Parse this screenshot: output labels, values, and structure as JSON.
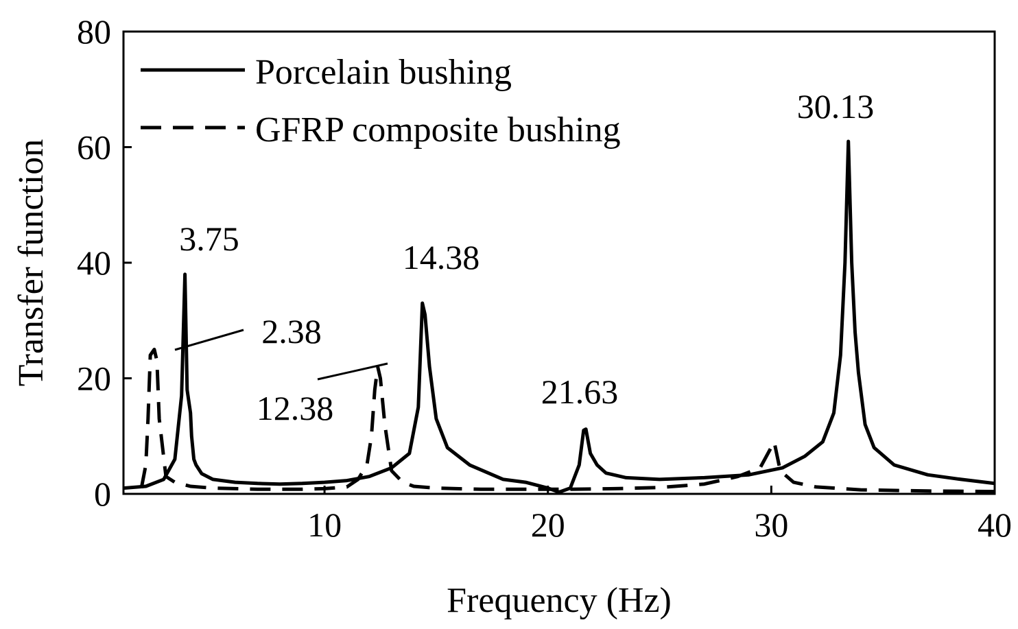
{
  "chart_data": {
    "type": "line",
    "title": "",
    "xlabel": "Frequency (Hz)",
    "ylabel": "Transfer function",
    "xlim": [
      1,
      40
    ],
    "ylim": [
      0,
      80
    ],
    "xticks": [
      10,
      20,
      30,
      40
    ],
    "yticks": [
      0,
      20,
      40,
      60,
      80
    ],
    "grid": false,
    "legend_position": "top-left",
    "series": [
      {
        "name": "Porcelain bushing",
        "style": "solid",
        "color": "#000000",
        "x": [
          1.0,
          2.0,
          2.8,
          3.3,
          3.6,
          3.75,
          3.85,
          4.0,
          4.05,
          4.15,
          4.25,
          4.5,
          5.0,
          6.0,
          7.0,
          8.0,
          9.0,
          10.0,
          11.0,
          12.0,
          13.0,
          13.8,
          14.2,
          14.38,
          14.5,
          14.7,
          15.0,
          15.5,
          16.5,
          18.0,
          19.0,
          20.0,
          20.5,
          21.0,
          21.4,
          21.6,
          21.7,
          21.9,
          22.2,
          22.6,
          23.5,
          25.0,
          27.0,
          29.0,
          30.5,
          31.5,
          32.3,
          32.8,
          33.1,
          33.3,
          33.45,
          33.6,
          33.75,
          33.9,
          34.2,
          34.6,
          35.5,
          37.0,
          38.5,
          40.0
        ],
        "y": [
          1.0,
          1.3,
          2.5,
          6.0,
          17.0,
          38.0,
          18.0,
          14.0,
          10.0,
          6.0,
          5.0,
          3.5,
          2.5,
          2.0,
          1.8,
          1.7,
          1.8,
          2.0,
          2.3,
          3.0,
          4.5,
          7.0,
          15.0,
          33.0,
          31.0,
          22.0,
          13.0,
          8.0,
          5.0,
          2.5,
          2.0,
          1.0,
          0.3,
          1.0,
          5.0,
          11.0,
          11.2,
          7.0,
          5.0,
          3.6,
          2.8,
          2.5,
          2.8,
          3.3,
          4.5,
          6.5,
          9.0,
          14.0,
          24.0,
          40.0,
          61.0,
          40.0,
          28.0,
          21.0,
          12.0,
          8.0,
          5.0,
          3.3,
          2.5,
          1.8
        ]
      },
      {
        "name": "GFRP composite bushing",
        "style": "dashed",
        "color": "#000000",
        "x": [
          1.8,
          2.0,
          2.1,
          2.2,
          2.38,
          2.5,
          2.6,
          2.9,
          3.3,
          4.0,
          5.0,
          6.0,
          7.0,
          8.0,
          9.0,
          10.0,
          11.0,
          11.5,
          11.9,
          12.1,
          12.25,
          12.38,
          12.5,
          12.7,
          13.0,
          13.5,
          14.0,
          15.0,
          17.0,
          19.0,
          21.0,
          23.0,
          25.0,
          27.0,
          28.5,
          29.5,
          30.13,
          30.4,
          31.0,
          32.0,
          34.0,
          37.0,
          40.0
        ],
        "y": [
          1.0,
          5.0,
          13.0,
          24.0,
          25.0,
          23.0,
          13.0,
          3.0,
          2.0,
          1.3,
          1.0,
          0.9,
          0.8,
          0.8,
          0.8,
          0.9,
          1.2,
          2.5,
          5.0,
          10.0,
          18.0,
          22.0,
          20.0,
          12.0,
          4.0,
          2.0,
          1.3,
          1.0,
          0.8,
          0.8,
          0.8,
          0.9,
          1.1,
          1.7,
          3.0,
          4.5,
          9.0,
          4.0,
          2.0,
          1.2,
          0.7,
          0.5,
          0.4
        ]
      }
    ],
    "annotations": [
      {
        "text": "3.75",
        "x": 3.75,
        "y": 38.0
      },
      {
        "text": "14.38",
        "x": 14.38,
        "y": 33.0
      },
      {
        "text": "21.63",
        "x": 21.63,
        "y": 11.2
      },
      {
        "text": "30.13",
        "x": 30.13,
        "y": 61.0
      },
      {
        "text": "2.38",
        "x": 2.38,
        "y": 25.0
      },
      {
        "text": "12.38",
        "x": 12.38,
        "y": 22.0
      }
    ]
  }
}
